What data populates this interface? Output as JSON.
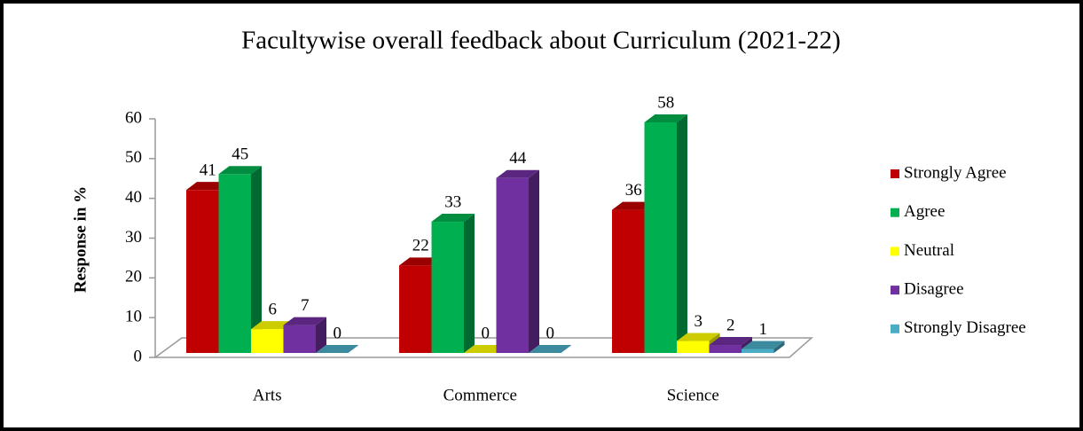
{
  "chart_data": {
    "type": "bar3d",
    "title": "Facultywise overall feedback about Curriculum (2021-22)",
    "y_label": "Response in %",
    "categories": [
      "Arts",
      "Commerce",
      "Science"
    ],
    "series": [
      {
        "name": "Strongly Agree",
        "color": "#c00000",
        "values": [
          41,
          22,
          36
        ]
      },
      {
        "name": "Agree",
        "color": "#00b050",
        "values": [
          45,
          33,
          58
        ]
      },
      {
        "name": "Neutral",
        "color": "#ffff00",
        "values": [
          6,
          0,
          3
        ]
      },
      {
        "name": "Disagree",
        "color": "#7030a0",
        "values": [
          7,
          44,
          2
        ]
      },
      {
        "name": "Strongly Disagree",
        "color": "#4bacc6",
        "values": [
          0,
          0,
          1
        ]
      }
    ],
    "ylim": [
      0,
      60
    ],
    "yticks": [
      0,
      10,
      20,
      30,
      40,
      50,
      60
    ],
    "legend": "right"
  }
}
